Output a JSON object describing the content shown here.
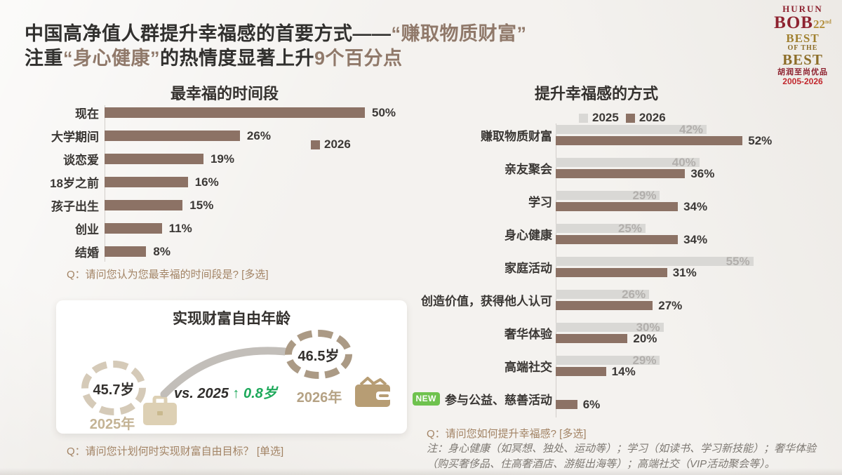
{
  "title": {
    "l1_dark": "中国高净值人群提升幸福感的首要方式——",
    "l1_brown": "“赚取物质财富”",
    "l2_dark1": "注重",
    "l2_brown1": "“身心健康”",
    "l2_dark2": "的热情度显著上升",
    "l2_brown2": "9个百分点"
  },
  "logo": {
    "brand": "HURUN",
    "name": "BOB",
    "edition": "22",
    "edition_suffix": "nd",
    "best1": "BEST",
    "best2": "OF THE",
    "best3": "BEST",
    "cn": "胡润至尚优品",
    "years": "2005-2026"
  },
  "chart_data": [
    {
      "type": "bar",
      "orientation": "horizontal",
      "title": "最幸福的时间段",
      "legend": [
        "2026"
      ],
      "categories": [
        "现在",
        "大学期间",
        "谈恋爱",
        "18岁之前",
        "孩子出生",
        "创业",
        "结婚"
      ],
      "values": [
        50,
        26,
        19,
        16,
        15,
        11,
        8
      ],
      "unit": "%",
      "xlim": [
        0,
        55
      ],
      "grid": false,
      "question": "Q：请问您认为您最幸福的时间段是? [多选]"
    },
    {
      "type": "bar",
      "orientation": "horizontal",
      "title": "提升幸福感的方式",
      "categories": [
        "赚取物质财富",
        "亲友聚会",
        "学习",
        "身心健康",
        "家庭活动",
        "创造价值，获得他人认可",
        "奢华体验",
        "高端社交",
        "参与公益、慈善活动"
      ],
      "series": [
        {
          "name": "2025",
          "values": [
            42,
            40,
            29,
            25,
            55,
            26,
            30,
            29,
            null
          ]
        },
        {
          "name": "2026",
          "values": [
            52,
            36,
            34,
            34,
            31,
            27,
            20,
            14,
            6
          ]
        }
      ],
      "unit": "%",
      "xlim": [
        0,
        60
      ],
      "grid": false,
      "legend_position": "top",
      "new_badge": {
        "label": "NEW",
        "category": "参与公益、慈善活动"
      },
      "question": "Q：请问您如何提升幸福感? [多选]",
      "note": "注：身心健康（如冥想、独处、运动等）；学习（如读书、学习新技能）；奢华体验（购买奢侈品、住高奢酒店、游艇出海等）；高端社交（VIP活动聚会等）。"
    }
  ],
  "card": {
    "title": "实现财富自由年龄",
    "from_value": "45.7岁",
    "from_year": "2025年",
    "to_value": "46.5岁",
    "to_year": "2026年",
    "vs_label": "vs. 2025",
    "delta": "↑ 0.8岁",
    "question": "Q：请问您计划何时实现财富自由目标？ [单选]"
  },
  "colors": {
    "bar_2026": "#8c7265",
    "bar_2025": "#d9d8d5",
    "accent_brown": "#90796a",
    "question_brown": "#a28364",
    "delta_green": "#1ea95b",
    "new_badge_green": "#6fc24e",
    "logo_red": "#8e2330",
    "logo_gold": "#b3903f"
  }
}
